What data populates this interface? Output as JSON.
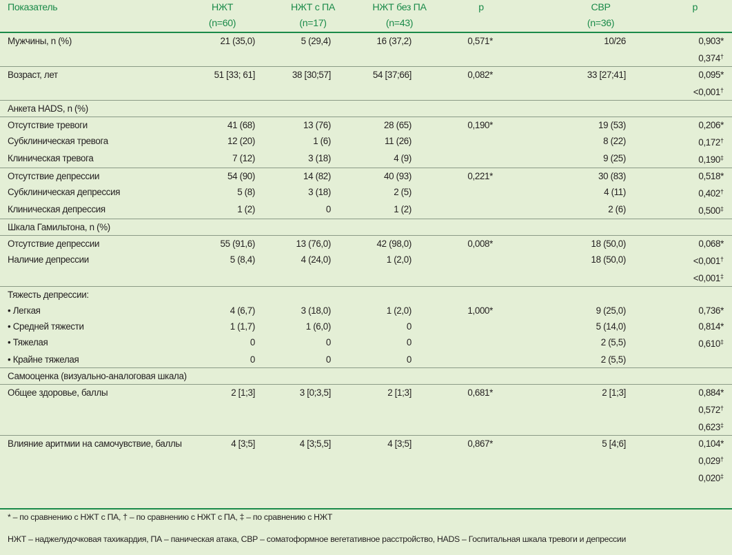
{
  "header": {
    "col0": "Показатель",
    "col1": [
      "НЖТ",
      "(n=60)"
    ],
    "col2": [
      "НЖТ с ПА",
      "(n=17)"
    ],
    "col3": [
      "НЖТ без ПА",
      "(n=43)"
    ],
    "col4": "p",
    "col5": [
      "СВР",
      "(n=36)"
    ],
    "col6": "p"
  },
  "rows": [
    {
      "type": "data",
      "cls": "sep-top line-below",
      "label": "Мужчины, n (%)",
      "v1": "21 (35,0)",
      "v2": "5 (29,4)",
      "v3": "16 (37,2)",
      "p1": "0,571*",
      "v5": "10/26",
      "p2": [
        [
          "0,903",
          "*"
        ],
        [
          "0,374",
          "†"
        ]
      ]
    },
    {
      "type": "data",
      "cls": "sep-top line-below",
      "label": "Возраст, лет",
      "v1": "51 [33; 61]",
      "v2": "38 [30;57]",
      "v3": "54 [37;66]",
      "p1": "0,082*",
      "v5": "33 [27;41]",
      "p2": [
        [
          "0,095",
          "*"
        ],
        [
          "<0,001",
          "†"
        ]
      ]
    },
    {
      "type": "section",
      "label": "Анкета HADS, n (%)"
    },
    {
      "type": "data",
      "cls": "sep-top",
      "label": "Отсутствие тревоги",
      "v1": "41 (68)",
      "v2": "13 (76)",
      "v3": "28 (65)",
      "p1": "0,190*",
      "v5": "19 (53)",
      "p2": [
        [
          "0,206",
          "*"
        ]
      ]
    },
    {
      "type": "data",
      "cls": "",
      "label": "Субклиническая тревога",
      "v1": "12 (20)",
      "v2": "1 (6)",
      "v3": "11 (26)",
      "p1": "",
      "v5": "8 (22)",
      "p2": [
        [
          "0,172",
          "†"
        ]
      ]
    },
    {
      "type": "data",
      "cls": "sep-bot line-below",
      "label": "Клиническая тревога",
      "v1": "7 (12)",
      "v2": "3 (18)",
      "v3": "4 (9)",
      "p1": "",
      "v5": "9 (25)",
      "p2": [
        [
          "0,190",
          "‡"
        ]
      ]
    },
    {
      "type": "data",
      "cls": "sep-top",
      "label": "Отсутствие депрессии",
      "v1": "54 (90)",
      "v2": "14 (82)",
      "v3": "40 (93)",
      "p1": "0,221*",
      "v5": "30 (83)",
      "p2": [
        [
          "0,518",
          "*"
        ]
      ]
    },
    {
      "type": "data",
      "cls": "",
      "label": "Субклиническая депрессия",
      "v1": "5 (8)",
      "v2": "3 (18)",
      "v3": "2 (5)",
      "p1": "",
      "v5": "4 (11)",
      "p2": [
        [
          "0,402",
          "†"
        ]
      ]
    },
    {
      "type": "data",
      "cls": "sep-bot line-below",
      "label": "Клиническая депрессия",
      "v1": "1 (2)",
      "v2": "0",
      "v3": "1 (2)",
      "p1": "",
      "v5": "2 (6)",
      "p2": [
        [
          "0,500",
          "‡"
        ]
      ]
    },
    {
      "type": "section",
      "label": "Шкала Гамильтона, n (%)"
    },
    {
      "type": "data",
      "cls": "sep-top",
      "label": "Отсутствие депрессии",
      "v1": "55 (91,6)",
      "v2": "13 (76,0)",
      "v3": "42 (98,0)",
      "p1": "0,008*",
      "v5": "18 (50,0)",
      "p2": [
        [
          "0,068",
          "*"
        ]
      ]
    },
    {
      "type": "data",
      "cls": "sep-bot line-below",
      "label": "Наличие депрессии",
      "v1": "5 (8,4)",
      "v2": "4 (24,0)",
      "v3": "1 (2,0)",
      "p1": "",
      "v5": "18 (50,0)",
      "p2": [
        [
          "<0,001",
          "†"
        ],
        [
          "<0,001",
          "‡"
        ]
      ]
    },
    {
      "type": "data",
      "cls": "sep-top",
      "label": "Тяжесть депрессии:",
      "v1": "",
      "v2": "",
      "v3": "",
      "p1": "",
      "v5": "",
      "p2": []
    },
    {
      "type": "data",
      "cls": "",
      "bullet": true,
      "label": "• Легкая",
      "v1": "4 (6,7)",
      "v2": "3 (18,0)",
      "v3": "1 (2,0)",
      "p1": "1,000*",
      "v5": "9 (25,0)",
      "p2": [
        [
          "0,736",
          "*"
        ]
      ]
    },
    {
      "type": "data",
      "cls": "",
      "bullet": true,
      "label": "• Средней тяжести",
      "v1": "1 (1,7)",
      "v2": "1 (6,0)",
      "v3": "0",
      "p1": "",
      "v5": "5 (14,0)",
      "p2": [
        [
          "0,814",
          "*"
        ]
      ]
    },
    {
      "type": "data",
      "cls": "",
      "bullet": true,
      "label": "• Тяжелая",
      "v1": "0",
      "v2": "0",
      "v3": "0",
      "p1": "",
      "v5": "2 (5,5)",
      "p2": [
        [
          "0,610",
          "‡"
        ]
      ]
    },
    {
      "type": "data",
      "cls": "sep-bot line-below",
      "bullet": true,
      "label": "• Крайне тяжелая",
      "v1": "0",
      "v2": "0",
      "v3": "0",
      "p1": "",
      "v5": "2 (5,5)",
      "p2": []
    },
    {
      "type": "section",
      "label": "Самооценка (визуально-аналоговая шкала)"
    },
    {
      "type": "data",
      "cls": "sep-top line-below",
      "label": "Общее здоровье, баллы",
      "v1": "2 [1;3]",
      "v2": "3 [0;3,5]",
      "v3": "2 [1;3]",
      "p1": "0,681*",
      "v5": "2 [1;3]",
      "p2": [
        [
          "0,884",
          "*"
        ],
        [
          "0,572",
          "†"
        ],
        [
          "0,623",
          "‡"
        ]
      ]
    },
    {
      "type": "data",
      "cls": "sep-top",
      "label": "Влияние аритмии на самочувствие, баллы",
      "v1": "4 [3;5]",
      "v2": "4 [3;5,5]",
      "v3": "4 [3;5]",
      "p1": "0,867*",
      "v5": "5 [4;6]",
      "p2": [
        [
          "0,104",
          "*"
        ],
        [
          "0,029",
          "†"
        ],
        [
          "0,020",
          "‡"
        ]
      ]
    }
  ],
  "footnotes": {
    "line1": "* – по сравнению с НЖТ с ПА, † – по сравнению с НЖТ с ПА, ‡ – по сравнению с НЖТ",
    "line2": "НЖТ – наджелудочковая тахикардия, ПА – паническая атака, СВР – соматоформное вегетативное расстройство, HADS – Госпитальная шкала тревоги и депрессии"
  },
  "colors": {
    "header": "#1a8a49",
    "background": "#e4efd6"
  }
}
